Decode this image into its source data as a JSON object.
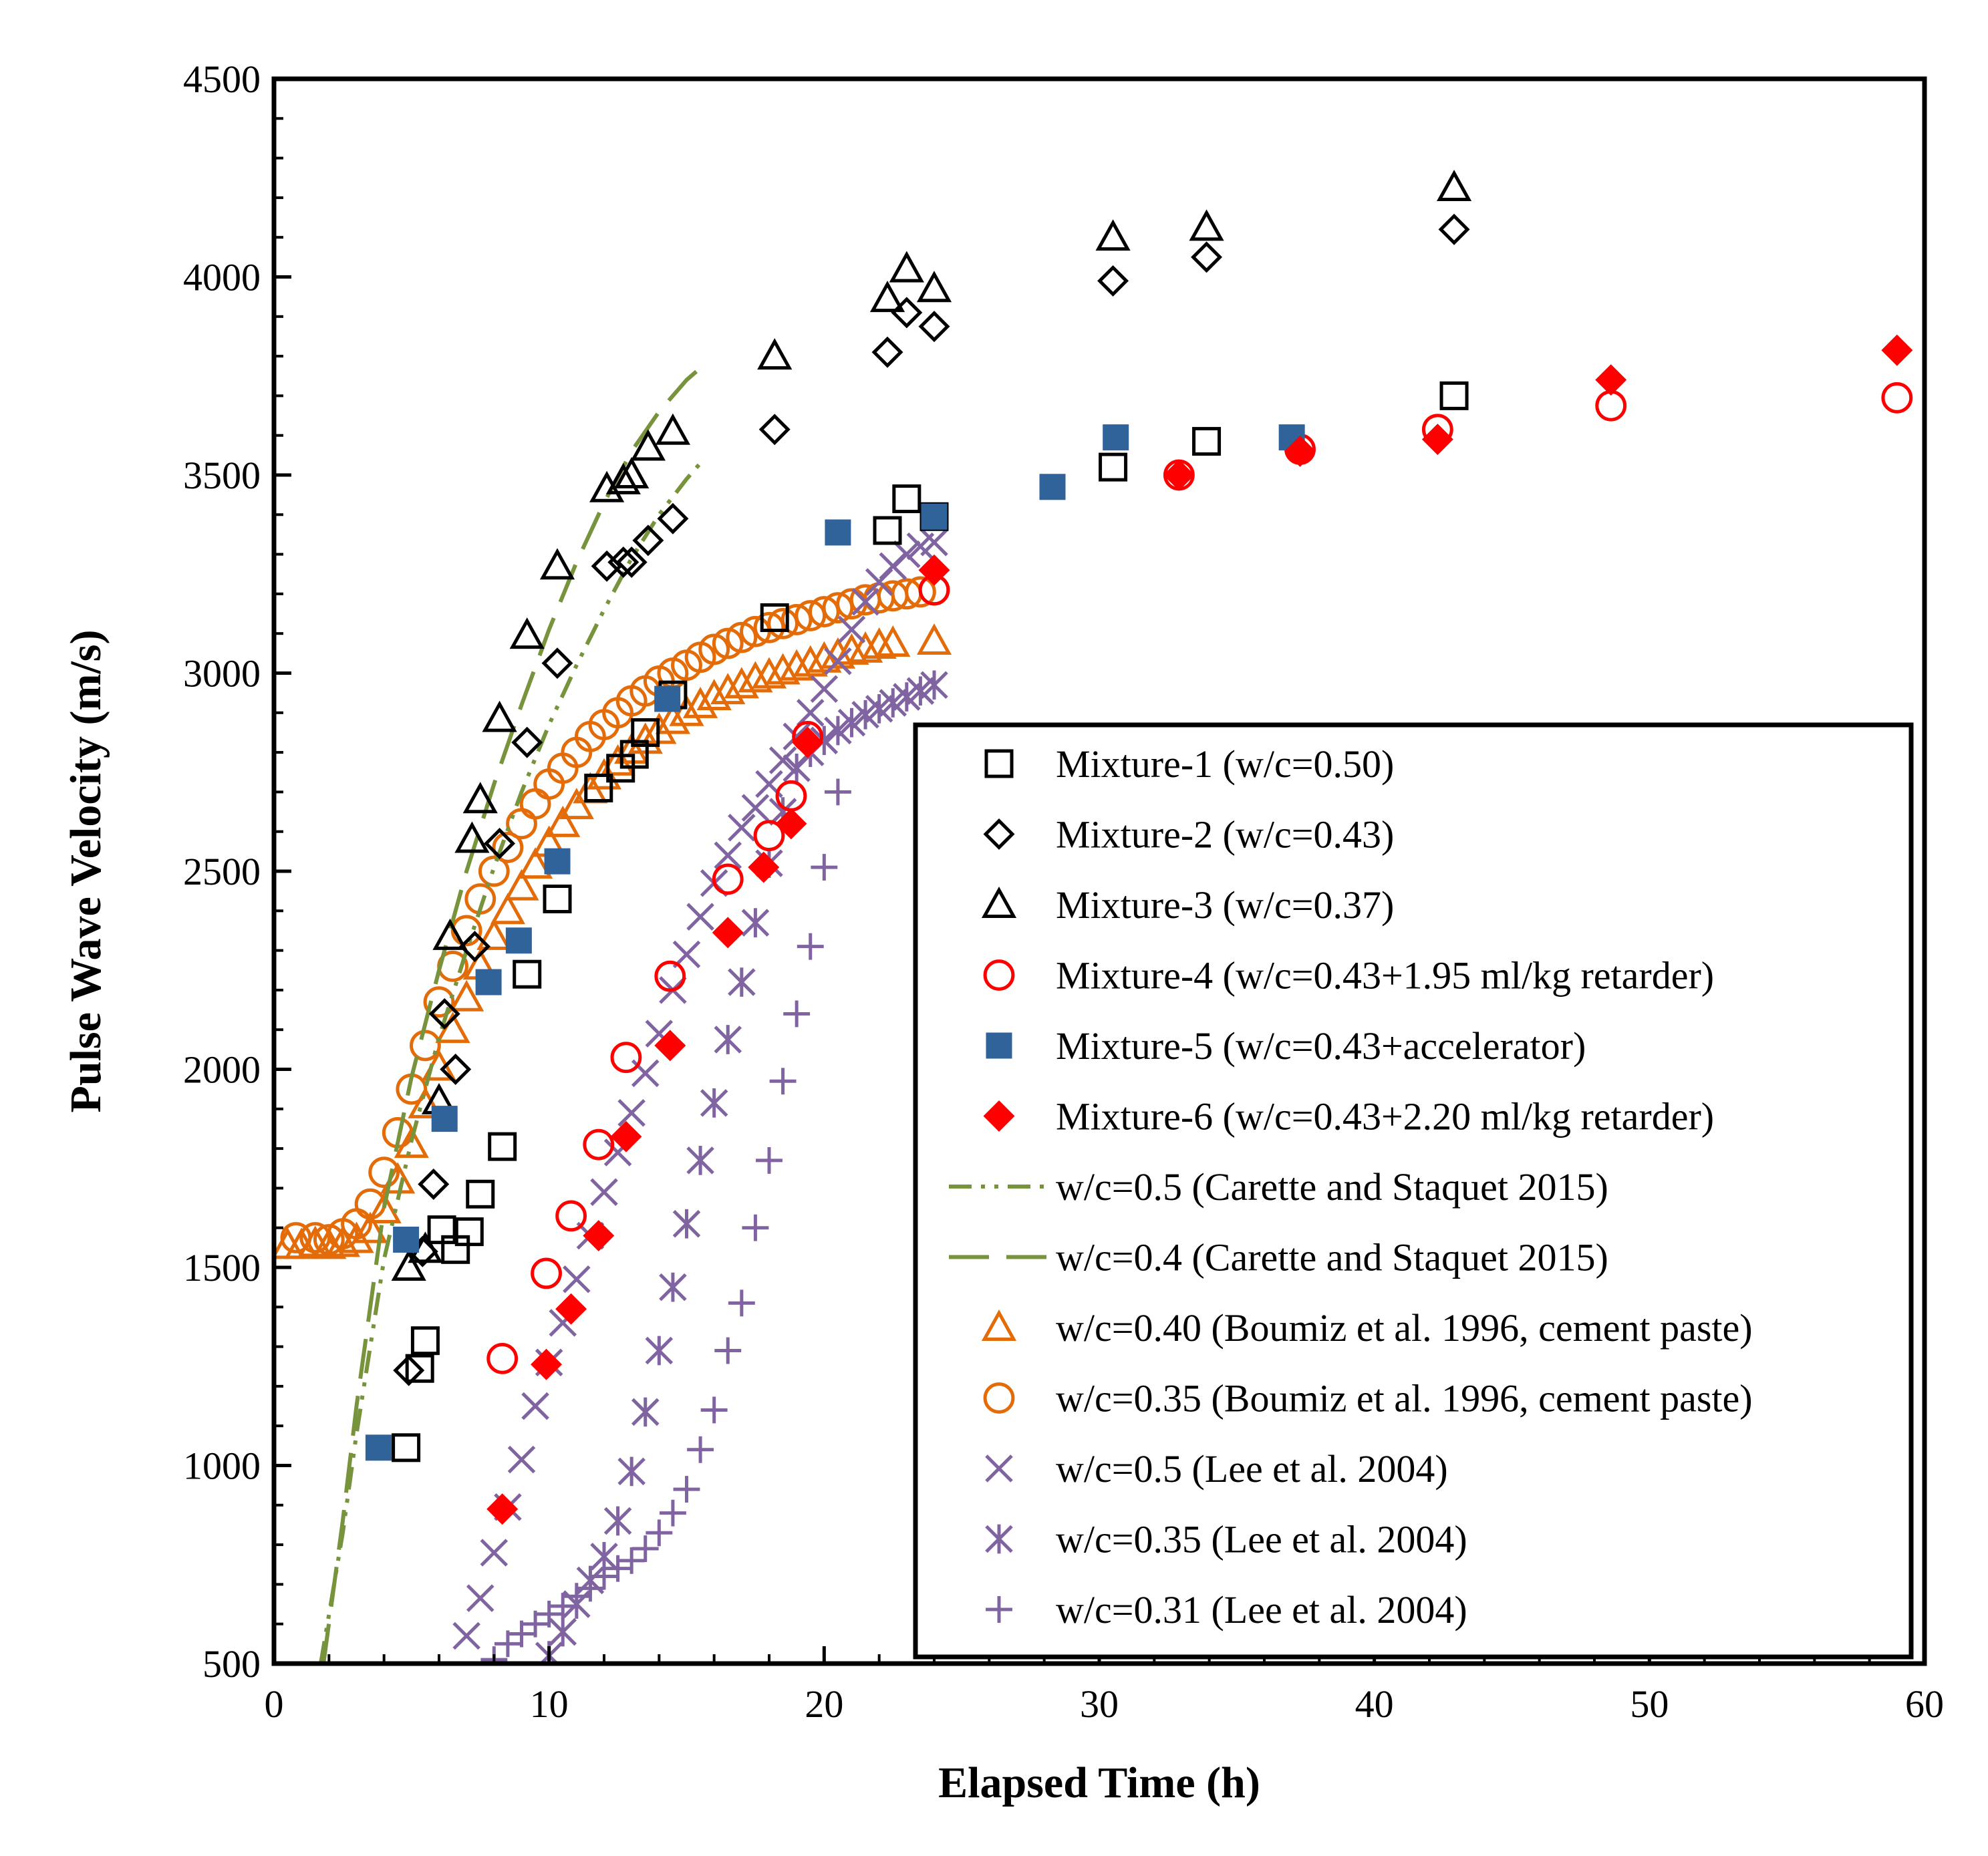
{
  "chart_data": {
    "type": "scatter",
    "title": "",
    "xlabel": "Elapsed Time (h)",
    "ylabel": "Pulse Wave Velocity (m/s)",
    "xlim": [
      0,
      60
    ],
    "ylim": [
      500,
      4500
    ],
    "x_ticks": [
      "0",
      "10",
      "20",
      "30",
      "40",
      "50",
      "60"
    ],
    "y_ticks": [
      "500",
      "1000",
      "1500",
      "2000",
      "2500",
      "3000",
      "3500",
      "4000",
      "4500"
    ],
    "grid": false,
    "legend_position": "lower-right",
    "series": [
      {
        "name": "Mixture-1 (w/c=0.50)",
        "marker": "open-square",
        "color": "#000000",
        "x": [
          4.8,
          5.3,
          5.5,
          6.1,
          6.6,
          7.1,
          7.5,
          8.3,
          9.2,
          10.3,
          11.8,
          12.6,
          13.1,
          13.5,
          14.5,
          18.2,
          22.3,
          23.0,
          24.0,
          30.5,
          33.9,
          42.9
        ],
        "y": [
          1045,
          1245,
          1315,
          1595,
          1545,
          1590,
          1685,
          1805,
          2240,
          2430,
          2710,
          2760,
          2795,
          2850,
          2945,
          3140,
          3360,
          3440,
          3395,
          3520,
          3585,
          3700
        ]
      },
      {
        "name": "Mixture-2 (w/c=0.43)",
        "marker": "open-diamond",
        "color": "#000000",
        "x": [
          4.9,
          5.4,
          5.8,
          6.2,
          6.6,
          7.3,
          8.2,
          9.2,
          10.3,
          12.1,
          12.7,
          13.0,
          13.6,
          14.5,
          18.2,
          22.3,
          23.0,
          24.0,
          30.5,
          33.9,
          42.9
        ],
        "y": [
          1240,
          1540,
          1710,
          2140,
          2000,
          2310,
          2570,
          2825,
          3025,
          3270,
          3280,
          3280,
          3335,
          3390,
          3615,
          3810,
          3910,
          3875,
          3990,
          4050,
          4120
        ]
      },
      {
        "name": "Mixture-3 (w/c=0.37)",
        "marker": "open-triangle",
        "color": "#000000",
        "x": [
          4.9,
          5.5,
          6.0,
          6.4,
          7.2,
          7.5,
          8.2,
          9.2,
          10.3,
          12.1,
          12.7,
          13.0,
          13.6,
          14.5,
          18.2,
          22.3,
          23.0,
          24.0,
          30.5,
          33.9,
          42.9
        ],
        "y": [
          1500,
          1545,
          1920,
          2335,
          2580,
          2680,
          2885,
          3095,
          3270,
          3465,
          3485,
          3500,
          3570,
          3610,
          3800,
          3945,
          4020,
          3970,
          4100,
          4125,
          4225
        ]
      },
      {
        "name": "Mixture-4 (w/c=0.43+1.95 ml/kg retarder)",
        "marker": "open-circle",
        "color": "#ff0000",
        "x": [
          8.3,
          9.9,
          10.8,
          11.8,
          12.8,
          14.4,
          16.5,
          18.0,
          18.8,
          19.4,
          24.0,
          32.9,
          37.3,
          42.3,
          48.6,
          59.0
        ],
        "y": [
          1270,
          1485,
          1630,
          1810,
          2030,
          2235,
          2480,
          2590,
          2690,
          2840,
          3210,
          3500,
          3565,
          3615,
          3675,
          3695
        ]
      },
      {
        "name": "Mixture-5 (w/c=0.43+accelerator)",
        "marker": "filled-square",
        "color": "#31639b",
        "x": [
          3.8,
          4.8,
          6.2,
          7.8,
          8.9,
          10.3,
          14.3,
          20.5,
          24.0,
          28.3,
          30.6,
          37.0
        ],
        "y": [
          1045,
          1570,
          1875,
          2220,
          2325,
          2525,
          2935,
          3355,
          3395,
          3470,
          3595,
          3595
        ]
      },
      {
        "name": "Mixture-6 (w/c=0.43+2.20 ml/kg retarder)",
        "marker": "filled-diamond",
        "color": "#ff0000",
        "x": [
          8.3,
          9.9,
          10.8,
          11.8,
          12.8,
          14.4,
          16.5,
          17.8,
          18.8,
          19.4,
          24.0,
          32.9,
          37.3,
          42.3,
          48.6,
          59.0
        ],
        "y": [
          890,
          1255,
          1395,
          1580,
          1830,
          2060,
          2345,
          2510,
          2620,
          2825,
          3260,
          3500,
          3560,
          3590,
          3740,
          3815
        ]
      },
      {
        "name": "w/c=0.5 (Carette and Staquet 2015)",
        "marker": "line-dashdotdot",
        "color": "#77933c",
        "x": [
          1.7,
          2.5,
          3.0,
          4.0,
          5.0,
          6.0,
          7.0,
          8.0,
          9.0,
          10.0,
          11.0,
          12.0,
          13.0,
          14.0,
          15.0,
          15.5
        ],
        "y": [
          500,
          830,
          1080,
          1520,
          1820,
          2080,
          2300,
          2510,
          2700,
          2870,
          3020,
          3160,
          3290,
          3400,
          3490,
          3530
        ]
      },
      {
        "name": "w/c=0.4 (Carette and Staquet 2015)",
        "marker": "line-dashed",
        "color": "#77933c",
        "x": [
          1.8,
          2.5,
          3.0,
          4.0,
          5.0,
          6.0,
          7.0,
          8.0,
          9.0,
          10.0,
          11.0,
          12.0,
          13.0,
          14.0,
          15.0,
          15.5
        ],
        "y": [
          500,
          860,
          1150,
          1650,
          1980,
          2250,
          2500,
          2720,
          2920,
          3110,
          3280,
          3430,
          3560,
          3660,
          3740,
          3770
        ]
      },
      {
        "name": "w/c=0.40 (Boumiz et al. 1996, cement paste)",
        "marker": "open-triangle",
        "color": "#e36c09",
        "x": [
          0.5,
          1.0,
          1.5,
          2.0,
          2.5,
          3.0,
          3.5,
          4.0,
          4.5,
          5.0,
          5.5,
          6.0,
          6.5,
          7.0,
          7.5,
          8.0,
          8.5,
          9.0,
          9.5,
          10.0,
          10.5,
          11.0,
          11.5,
          12.0,
          12.5,
          13.0,
          13.5,
          14.0,
          14.5,
          15.0,
          15.5,
          16.0,
          16.5,
          17.0,
          17.5,
          18.0,
          18.5,
          19.0,
          19.5,
          20.0,
          20.5,
          21.0,
          21.5,
          22.0,
          22.5,
          24.0
        ],
        "y": [
          1555,
          1555,
          1560,
          1555,
          1560,
          1570,
          1595,
          1645,
          1720,
          1810,
          1910,
          2005,
          2100,
          2180,
          2260,
          2335,
          2400,
          2460,
          2515,
          2570,
          2620,
          2665,
          2705,
          2740,
          2775,
          2805,
          2830,
          2855,
          2880,
          2900,
          2920,
          2940,
          2955,
          2970,
          2985,
          2995,
          3005,
          3015,
          3025,
          3035,
          3045,
          3055,
          3060,
          3070,
          3075,
          3080
        ]
      },
      {
        "name": "w/c=0.35 (Boumiz et al. 1996, cement paste)",
        "marker": "open-circle",
        "color": "#e36c09",
        "x": [
          0.8,
          1.5,
          2.0,
          2.5,
          3.0,
          3.5,
          4.0,
          4.5,
          5.0,
          5.5,
          6.0,
          6.5,
          7.0,
          7.5,
          8.0,
          8.5,
          9.0,
          9.5,
          10.0,
          10.5,
          11.0,
          11.5,
          12.0,
          12.5,
          13.0,
          13.5,
          14.0,
          14.5,
          15.0,
          15.5,
          16.0,
          16.5,
          17.0,
          17.5,
          18.0,
          18.5,
          19.0,
          19.5,
          20.0,
          20.5,
          21.0,
          21.5,
          22.0,
          22.5,
          23.0,
          23.5,
          24.0
        ],
        "y": [
          1575,
          1575,
          1570,
          1585,
          1610,
          1660,
          1740,
          1840,
          1950,
          2060,
          2170,
          2260,
          2350,
          2430,
          2500,
          2560,
          2620,
          2670,
          2720,
          2760,
          2800,
          2840,
          2870,
          2900,
          2930,
          2955,
          2980,
          3000,
          3020,
          3040,
          3060,
          3075,
          3090,
          3105,
          3115,
          3125,
          3135,
          3145,
          3155,
          3165,
          3175,
          3185,
          3190,
          3195,
          3200,
          3205,
          3210
        ]
      },
      {
        "name": "w/c=0.5 (Lee  et al. 2004)",
        "marker": "x-cross",
        "color": "#8064a2",
        "x": [
          7.0,
          7.5,
          8.0,
          8.5,
          9.0,
          9.5,
          10.0,
          10.5,
          11.0,
          11.5,
          12.0,
          12.5,
          13.0,
          13.5,
          14.0,
          14.5,
          15.0,
          15.5,
          16.0,
          16.5,
          17.0,
          17.5,
          18.0,
          18.5,
          19.0,
          19.5,
          20.0,
          20.5,
          21.0,
          21.5,
          22.0,
          22.5,
          23.0,
          23.5,
          24.0
        ],
        "y": [
          570,
          665,
          780,
          895,
          1015,
          1150,
          1260,
          1360,
          1470,
          1580,
          1690,
          1790,
          1890,
          1990,
          2090,
          2200,
          2290,
          2385,
          2470,
          2540,
          2610,
          2660,
          2720,
          2780,
          2840,
          2900,
          2960,
          3030,
          3110,
          3180,
          3230,
          3270,
          3300,
          3320,
          3330
        ]
      },
      {
        "name": "w/c=0.35 (Lee  et al. 2004)",
        "marker": "asterisk",
        "color": "#8064a2",
        "x": [
          10.0,
          10.5,
          11.0,
          11.5,
          12.0,
          12.5,
          13.0,
          13.5,
          14.0,
          14.5,
          15.0,
          15.5,
          16.0,
          16.5,
          17.0,
          17.5,
          18.0,
          18.5,
          19.0,
          19.5,
          20.0,
          20.5,
          21.0,
          21.5,
          22.0,
          22.5,
          23.0,
          23.5,
          24.0
        ],
        "y": [
          520,
          580,
          650,
          710,
          770,
          860,
          985,
          1135,
          1290,
          1450,
          1610,
          1770,
          1915,
          2075,
          2220,
          2370,
          2520,
          2650,
          2760,
          2800,
          2830,
          2855,
          2875,
          2895,
          2910,
          2925,
          2940,
          2955,
          2970
        ]
      },
      {
        "name": "w/c=0.31 (Lee  et al. 2004)",
        "marker": "plus",
        "color": "#8064a2",
        "x": [
          8.0,
          8.5,
          9.0,
          9.5,
          10.0,
          10.5,
          11.0,
          11.5,
          12.0,
          12.5,
          13.0,
          13.5,
          14.0,
          14.5,
          15.0,
          15.5,
          16.0,
          16.5,
          17.0,
          17.5,
          18.0,
          18.5,
          19.0,
          19.5,
          20.0,
          20.5
        ],
        "y": [
          510,
          550,
          575,
          600,
          625,
          645,
          670,
          690,
          720,
          740,
          760,
          790,
          830,
          880,
          940,
          1040,
          1140,
          1290,
          1410,
          1600,
          1770,
          1970,
          2140,
          2310,
          2510,
          2700
        ]
      }
    ]
  }
}
